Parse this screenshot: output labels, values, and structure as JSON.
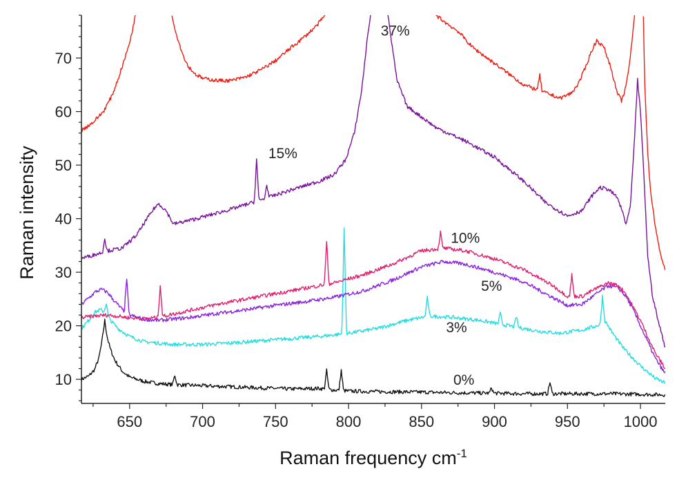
{
  "chart_data": {
    "type": "line",
    "title": "",
    "xlabel": "Raman frequency cm",
    "xlabel_superscript": "-1",
    "ylabel": "Raman intensity",
    "xlim": [
      617,
      1017
    ],
    "ylim": [
      5.5,
      78
    ],
    "xticks": [
      650,
      700,
      750,
      800,
      850,
      900,
      950,
      1000
    ],
    "yticks": [
      10,
      20,
      30,
      40,
      50,
      60,
      70
    ],
    "grid": false,
    "series": [
      {
        "name": "0%",
        "color": "#111111",
        "label_pos": [
          879,
          9.0
        ],
        "points": [
          [
            617,
            10
          ],
          [
            622,
            10.6
          ],
          [
            626,
            11.8
          ],
          [
            629,
            14
          ],
          [
            631,
            17
          ],
          [
            632,
            19
          ],
          [
            633,
            21
          ],
          [
            634,
            19
          ],
          [
            635,
            17.5
          ],
          [
            637,
            15.5
          ],
          [
            640,
            13.5
          ],
          [
            645,
            11.5
          ],
          [
            650,
            10.4
          ],
          [
            660,
            9.6
          ],
          [
            670,
            9.2
          ],
          [
            680,
            9.0
          ],
          [
            700,
            8.8
          ],
          [
            720,
            8.6
          ],
          [
            740,
            8.4
          ],
          [
            760,
            8.2
          ],
          [
            780,
            8.3
          ],
          [
            790,
            8.0
          ],
          [
            800,
            7.8
          ],
          [
            820,
            7.7
          ],
          [
            850,
            7.6
          ],
          [
            870,
            7.5
          ],
          [
            900,
            7.4
          ],
          [
            920,
            7.3
          ],
          [
            950,
            7.3
          ],
          [
            980,
            7.3
          ],
          [
            1000,
            7.2
          ],
          [
            1017,
            7.1
          ]
        ],
        "spikes": [
          [
            681,
            1.8
          ],
          [
            785,
            3.5
          ],
          [
            795,
            3.8
          ],
          [
            898,
            1.0
          ],
          [
            938,
            2.2
          ]
        ]
      },
      {
        "name": "3%",
        "color": "#22dde0",
        "label_pos": [
          874,
          18.8
        ],
        "points": [
          [
            617,
            19.5
          ],
          [
            622,
            21
          ],
          [
            626,
            22.5
          ],
          [
            630,
            23
          ],
          [
            633,
            22.5
          ],
          [
            637,
            21
          ],
          [
            642,
            19.5
          ],
          [
            650,
            18
          ],
          [
            660,
            17
          ],
          [
            680,
            16.5
          ],
          [
            700,
            16.5
          ],
          [
            720,
            16.8
          ],
          [
            740,
            17.2
          ],
          [
            760,
            17.6
          ],
          [
            780,
            18
          ],
          [
            800,
            18.6
          ],
          [
            820,
            19.5
          ],
          [
            840,
            21
          ],
          [
            855,
            21.8
          ],
          [
            870,
            21.6
          ],
          [
            890,
            21
          ],
          [
            910,
            20
          ],
          [
            930,
            19
          ],
          [
            945,
            18.6
          ],
          [
            960,
            19.2
          ],
          [
            970,
            20
          ],
          [
            976,
            20.8
          ],
          [
            980,
            19
          ],
          [
            985,
            17
          ],
          [
            990,
            15.3
          ],
          [
            1000,
            12.5
          ],
          [
            1010,
            10.2
          ],
          [
            1017,
            9.3
          ]
        ],
        "spikes": [
          [
            634,
            2.0
          ],
          [
            797,
            19.5
          ],
          [
            854,
            3.5
          ],
          [
            904,
            2.0
          ],
          [
            915,
            2.0
          ],
          [
            974,
            5.0
          ]
        ]
      },
      {
        "name": "5%",
        "color": "#8822dd",
        "label_pos": [
          898,
          26.5
        ],
        "points": [
          [
            617,
            24
          ],
          [
            622,
            25.2
          ],
          [
            627,
            26.4
          ],
          [
            631,
            26.8
          ],
          [
            635,
            26.2
          ],
          [
            640,
            24.5
          ],
          [
            645,
            23
          ],
          [
            650,
            22
          ],
          [
            660,
            21.2
          ],
          [
            670,
            21
          ],
          [
            690,
            21.5
          ],
          [
            710,
            22.3
          ],
          [
            730,
            23
          ],
          [
            750,
            23.8
          ],
          [
            770,
            24.5
          ],
          [
            790,
            25.3
          ],
          [
            810,
            26.5
          ],
          [
            830,
            28.5
          ],
          [
            850,
            31
          ],
          [
            865,
            32
          ],
          [
            880,
            31.5
          ],
          [
            900,
            30
          ],
          [
            920,
            28.2
          ],
          [
            935,
            26
          ],
          [
            950,
            23.8
          ],
          [
            960,
            24
          ],
          [
            970,
            26
          ],
          [
            978,
            27.5
          ],
          [
            985,
            27
          ],
          [
            990,
            25.5
          ],
          [
            995,
            23
          ],
          [
            1000,
            20
          ],
          [
            1005,
            17
          ],
          [
            1010,
            14
          ],
          [
            1017,
            11
          ]
        ],
        "spikes": [
          [
            648,
            6.5
          ]
        ]
      },
      {
        "name": "10%",
        "color": "#e0206e",
        "label_pos": [
          880,
          35.5
        ],
        "points": [
          [
            617,
            21.5
          ],
          [
            625,
            21.8
          ],
          [
            635,
            22
          ],
          [
            650,
            21.5
          ],
          [
            660,
            21.3
          ],
          [
            670,
            21.6
          ],
          [
            690,
            22.8
          ],
          [
            710,
            24
          ],
          [
            730,
            25
          ],
          [
            750,
            26
          ],
          [
            770,
            27
          ],
          [
            790,
            28
          ],
          [
            810,
            29.5
          ],
          [
            830,
            31.5
          ],
          [
            850,
            34
          ],
          [
            865,
            34.5
          ],
          [
            880,
            34
          ],
          [
            900,
            32.5
          ],
          [
            920,
            30.5
          ],
          [
            940,
            27.5
          ],
          [
            950,
            25.5
          ],
          [
            960,
            25.5
          ],
          [
            970,
            27
          ],
          [
            978,
            28
          ],
          [
            985,
            27.5
          ],
          [
            990,
            26
          ],
          [
            995,
            23.5
          ],
          [
            1000,
            21
          ],
          [
            1005,
            18
          ],
          [
            1010,
            15
          ],
          [
            1017,
            12
          ]
        ],
        "spikes": [
          [
            671,
            6.0
          ],
          [
            785,
            8.0
          ],
          [
            863,
            3.0
          ],
          [
            953,
            4.0
          ]
        ]
      },
      {
        "name": "15%",
        "color": "#771199",
        "label_pos": [
          755,
          51.3
        ],
        "points": [
          [
            617,
            32.6
          ],
          [
            625,
            33.2
          ],
          [
            635,
            34
          ],
          [
            645,
            34.5
          ],
          [
            655,
            37
          ],
          [
            662,
            40
          ],
          [
            667,
            42
          ],
          [
            670,
            42.8
          ],
          [
            675,
            41.5
          ],
          [
            680,
            39
          ],
          [
            690,
            39.6
          ],
          [
            700,
            40.3
          ],
          [
            720,
            41.8
          ],
          [
            740,
            43.5
          ],
          [
            760,
            45.3
          ],
          [
            780,
            47
          ],
          [
            790,
            48.2
          ],
          [
            798,
            51
          ],
          [
            804,
            56
          ],
          [
            809,
            64
          ],
          [
            813,
            74
          ],
          [
            816,
            80
          ],
          [
            826,
            80
          ],
          [
            829,
            74
          ],
          [
            833,
            66
          ],
          [
            840,
            61
          ],
          [
            860,
            57
          ],
          [
            880,
            54.5
          ],
          [
            900,
            51.5
          ],
          [
            920,
            47
          ],
          [
            935,
            43
          ],
          [
            950,
            40.5
          ],
          [
            960,
            41.5
          ],
          [
            966,
            44
          ],
          [
            972,
            45.8
          ],
          [
            978,
            45.5
          ],
          [
            984,
            44
          ],
          [
            988,
            41
          ],
          [
            990,
            39
          ],
          [
            993,
            42
          ],
          [
            996,
            55
          ],
          [
            998,
            66
          ],
          [
            1000,
            60
          ],
          [
            1002,
            50
          ],
          [
            1005,
            33
          ],
          [
            1008,
            26
          ],
          [
            1012,
            21
          ],
          [
            1017,
            16
          ]
        ],
        "spikes": [
          [
            633,
            2.5
          ],
          [
            737,
            7.8
          ],
          [
            744,
            2.5
          ]
        ]
      },
      {
        "name": "37%",
        "color": "#ee1b10",
        "label_pos": [
          832,
          74.2
        ],
        "segments": [
          [
            [
              617,
              56.5
            ],
            [
              625,
              58
            ],
            [
              632,
              60
            ],
            [
              638,
              63
            ],
            [
              642,
              66
            ],
            [
              645,
              68.5
            ],
            [
              648,
              71
            ],
            [
              651,
              74
            ],
            [
              654,
              78
            ]
          ],
          [
            [
              679,
              78
            ],
            [
              682,
              74.5
            ],
            [
              686,
              71
            ],
            [
              690,
              68.5
            ],
            [
              695,
              67
            ],
            [
              700,
              66.2
            ],
            [
              710,
              65.8
            ],
            [
              720,
              65.8
            ],
            [
              730,
              66.5
            ],
            [
              740,
              67.8
            ],
            [
              750,
              69.5
            ],
            [
              760,
              71.8
            ],
            [
              770,
              74
            ],
            [
              778,
              76
            ],
            [
              784,
              78
            ]
          ],
          [
            [
              860,
              78
            ],
            [
              867,
              76.5
            ],
            [
              875,
              75
            ],
            [
              885,
              72
            ],
            [
              895,
              70
            ],
            [
              905,
              68
            ],
            [
              920,
              65
            ],
            [
              935,
              63.5
            ],
            [
              945,
              62.5
            ],
            [
              953,
              63.5
            ],
            [
              958,
              65.5
            ],
            [
              962,
              68
            ],
            [
              966,
              71
            ],
            [
              970,
              73.3
            ],
            [
              975,
              72
            ],
            [
              980,
              68
            ],
            [
              984,
              63.5
            ],
            [
              987,
              62
            ],
            [
              990,
              64.5
            ],
            [
              993,
              70
            ],
            [
              996,
              78
            ]
          ],
          [
            [
              1002,
              78
            ],
            [
              1003,
              65
            ],
            [
              1005,
              52
            ],
            [
              1007,
              45
            ],
            [
              1010,
              39
            ],
            [
              1013,
              34
            ],
            [
              1017,
              30.5
            ]
          ]
        ],
        "spikes": [
          [
            931,
            3.0
          ]
        ]
      }
    ]
  }
}
